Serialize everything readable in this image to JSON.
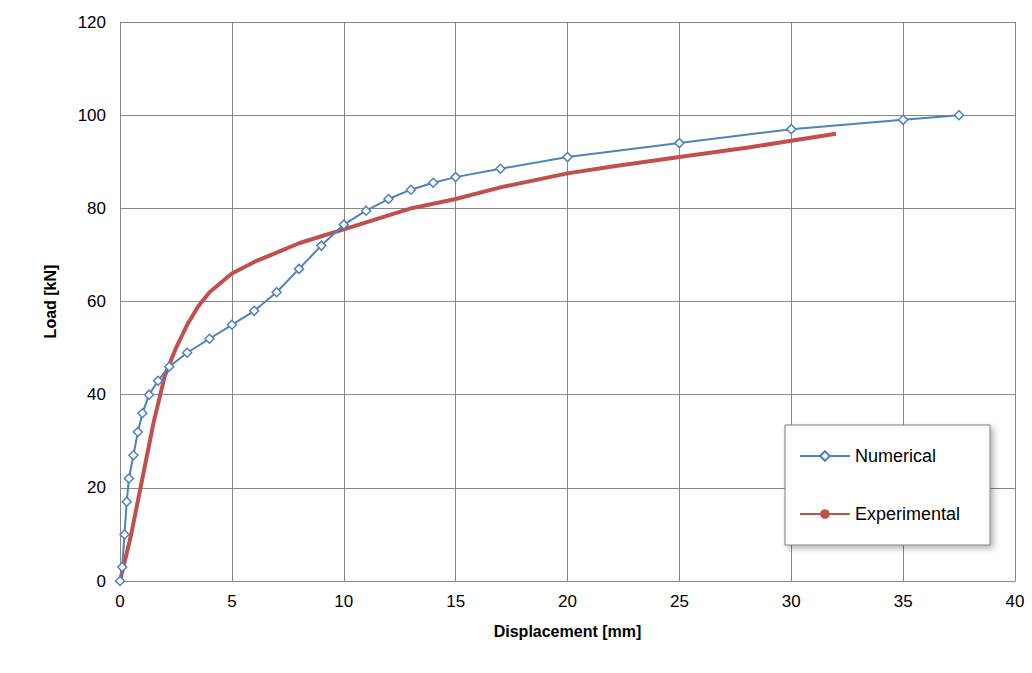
{
  "chart_data": {
    "type": "line",
    "x_label": "Displacement [mm]",
    "y_label": "Load [kN]",
    "xlim": [
      0,
      40
    ],
    "xticks": [
      0,
      5,
      10,
      15,
      20,
      25,
      30,
      35,
      40
    ],
    "ylim": [
      0,
      120
    ],
    "yticks": [
      0,
      20,
      40,
      60,
      80,
      100,
      120
    ],
    "grid": true,
    "legend": "lower right",
    "series": [
      {
        "name": "Numerical",
        "color": "#4f81bd",
        "marker": "diamond",
        "line_style": "solid",
        "x": [
          0,
          0.1,
          0.2,
          0.3,
          0.4,
          0.6,
          0.8,
          1.0,
          1.3,
          1.7,
          2.2,
          3,
          4,
          5,
          6,
          7,
          8,
          9,
          10,
          11,
          12,
          13,
          14,
          15,
          17,
          20,
          25,
          30,
          35,
          37.5
        ],
        "values": [
          0,
          3,
          10,
          17,
          22,
          27,
          32,
          36,
          40,
          43,
          46,
          49,
          52,
          55,
          58,
          62,
          67,
          72,
          76.5,
          79.5,
          82,
          84,
          85.5,
          86.7,
          88.5,
          91,
          94,
          97,
          99,
          100
        ]
      },
      {
        "name": "Experimental",
        "color": "#c0504d",
        "marker": "none",
        "line_style": "solid",
        "x": [
          0,
          0.5,
          1,
          1.5,
          2,
          2.5,
          3,
          3.5,
          4,
          5,
          6,
          7,
          8,
          9,
          10,
          11,
          12,
          13,
          14,
          15,
          17,
          20,
          22,
          25,
          28,
          30,
          32
        ],
        "values": [
          0,
          10,
          22,
          34,
          44,
          50,
          55,
          59,
          62,
          66,
          68.5,
          70.5,
          72.5,
          74,
          75.5,
          77,
          78.5,
          80,
          81,
          82,
          84.5,
          87.5,
          89,
          91,
          93,
          94.5,
          96
        ]
      }
    ]
  }
}
